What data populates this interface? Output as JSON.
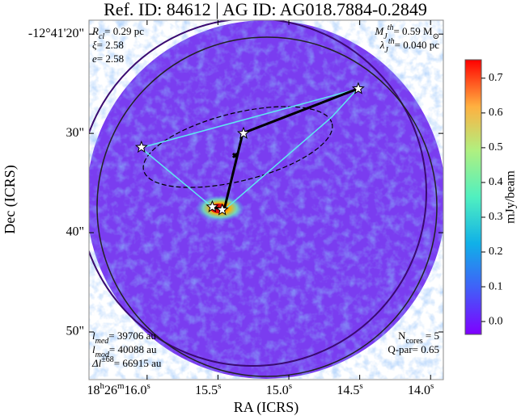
{
  "chart_data": {
    "type": "image",
    "title": "Ref. ID: 84612 | AG ID: AG018.7884-0.2849",
    "x_label": "RA (ICRS)",
    "y_label": "Dec (ICRS)",
    "xlim": [
      16.41,
      13.91
    ],
    "ylim": [
      54.8,
      18.6
    ],
    "xticks": [
      {
        "value": 16.0,
        "label": "16.0",
        "unit": "s",
        "hours": "18",
        "hour_unit": "h",
        "minutes": "26",
        "minute_unit": "m"
      },
      {
        "value": 15.5,
        "label": "15.5",
        "unit": "s"
      },
      {
        "value": 15.0,
        "label": "15.0",
        "unit": "s"
      },
      {
        "value": 14.5,
        "label": "14.5",
        "unit": "s"
      },
      {
        "value": 14.0,
        "label": "14.0",
        "unit": "s"
      }
    ],
    "yticks": [
      {
        "value": 20,
        "label": "-12°41'20\""
      },
      {
        "value": 30,
        "label": "30\""
      },
      {
        "value": 40,
        "label": "40\""
      },
      {
        "value": 50,
        "label": "50\""
      }
    ],
    "cores": {
      "x": [
        14.51,
        15.32,
        16.04,
        15.54,
        15.47
      ],
      "y": [
        25.5,
        30.0,
        31.4,
        37.4,
        37.7
      ]
    },
    "colorbar": {
      "label": "mJy/beam",
      "lim": [
        -0.037,
        0.753
      ],
      "ticks": [
        {
          "value": 0,
          "label": "0.0"
        },
        0.1,
        0.2,
        0.3,
        0.4,
        0.5,
        0.6,
        0.7
      ]
    },
    "annotations": {
      "top_left": [
        [
          {
            "t": "R",
            "italic": true
          },
          {
            "t": "cl",
            "sub": true,
            "italic": true
          },
          {
            "t": "= 0.29 pc"
          }
        ],
        [
          {
            "t": "ξ",
            "italic": true
          },
          {
            "t": "= 2.58"
          }
        ],
        [
          {
            "t": "e",
            "italic": true
          },
          {
            "t": "= 2.58"
          }
        ]
      ],
      "top_right": [
        [
          {
            "t": "M",
            "italic": true
          },
          {
            "t": "J",
            "sub": true,
            "italic": true
          },
          {
            "t": "th",
            "sup": true,
            "italic": true
          },
          {
            "t": "= 0.59 M"
          },
          {
            "t": "⊙",
            "sub": true
          }
        ],
        [
          {
            "t": "λ",
            "italic": true
          },
          {
            "t": "J",
            "sub": true,
            "italic": true
          },
          {
            "t": "th",
            "sup": true,
            "italic": true
          },
          {
            "t": "= 0.040 pc"
          }
        ]
      ],
      "bottom_left": [
        [
          {
            "t": "l",
            "italic": true
          },
          {
            "t": "med",
            "sub": true,
            "italic": true
          },
          {
            "t": "= 39706 au"
          }
        ],
        [
          {
            "t": "l",
            "italic": true
          },
          {
            "t": "mod",
            "sub": true,
            "italic": true
          },
          {
            "t": "= 40088 au"
          }
        ],
        [
          {
            "t": "Δl",
            "italic": true
          },
          {
            "t": "±68",
            "sup": true
          },
          {
            "t": "= 66915 au"
          }
        ]
      ],
      "bottom_right": [
        [
          {
            "t": "N"
          },
          {
            "t": "cores",
            "sub": true
          },
          {
            "t": " = 5"
          }
        ],
        [
          {
            "t": "Q-par= 0.65"
          }
        ]
      ]
    }
  }
}
